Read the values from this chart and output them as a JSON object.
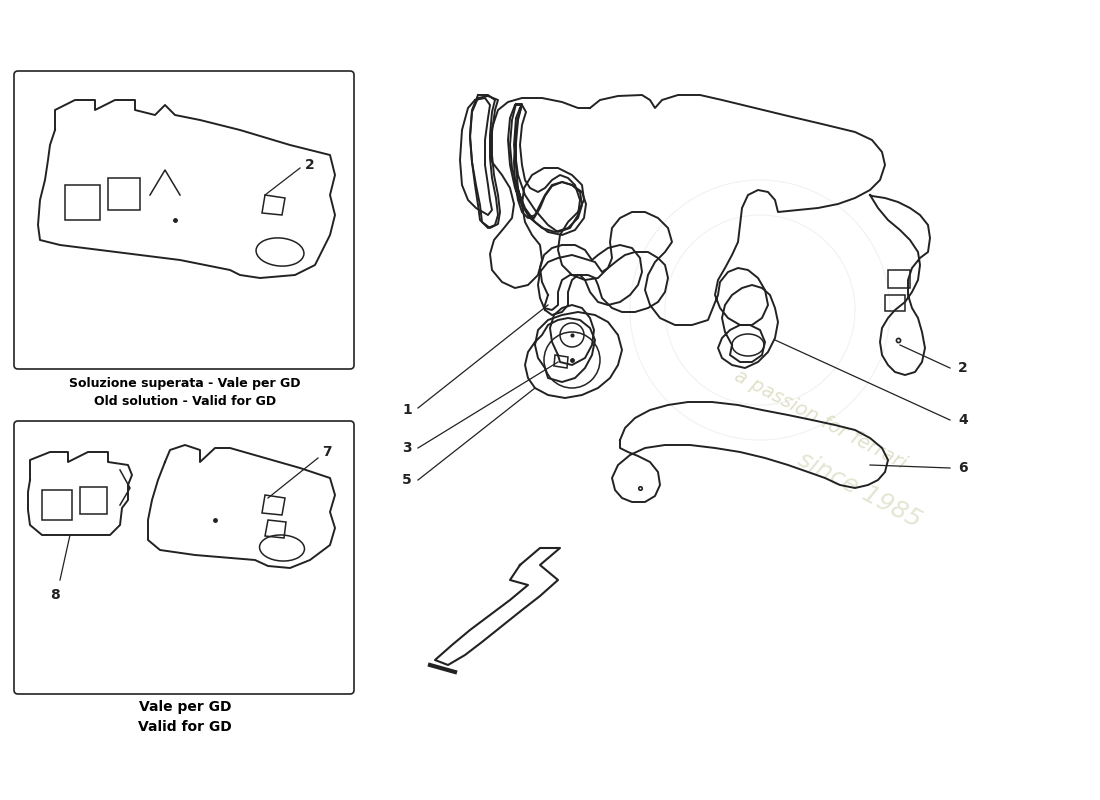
{
  "bg_color": "#ffffff",
  "line_color": "#222222",
  "line_width": 1.4,
  "label_color": "#000000",
  "wm_color1": "#c8c8a0",
  "wm_color2": "#d0d0b0",
  "box1_label_line1": "Soluzione superata - Vale per GD",
  "box1_label_line2": "Old solution - Valid for GD",
  "box2_label_line1": "Vale per GD",
  "box2_label_line2": "Valid for GD"
}
